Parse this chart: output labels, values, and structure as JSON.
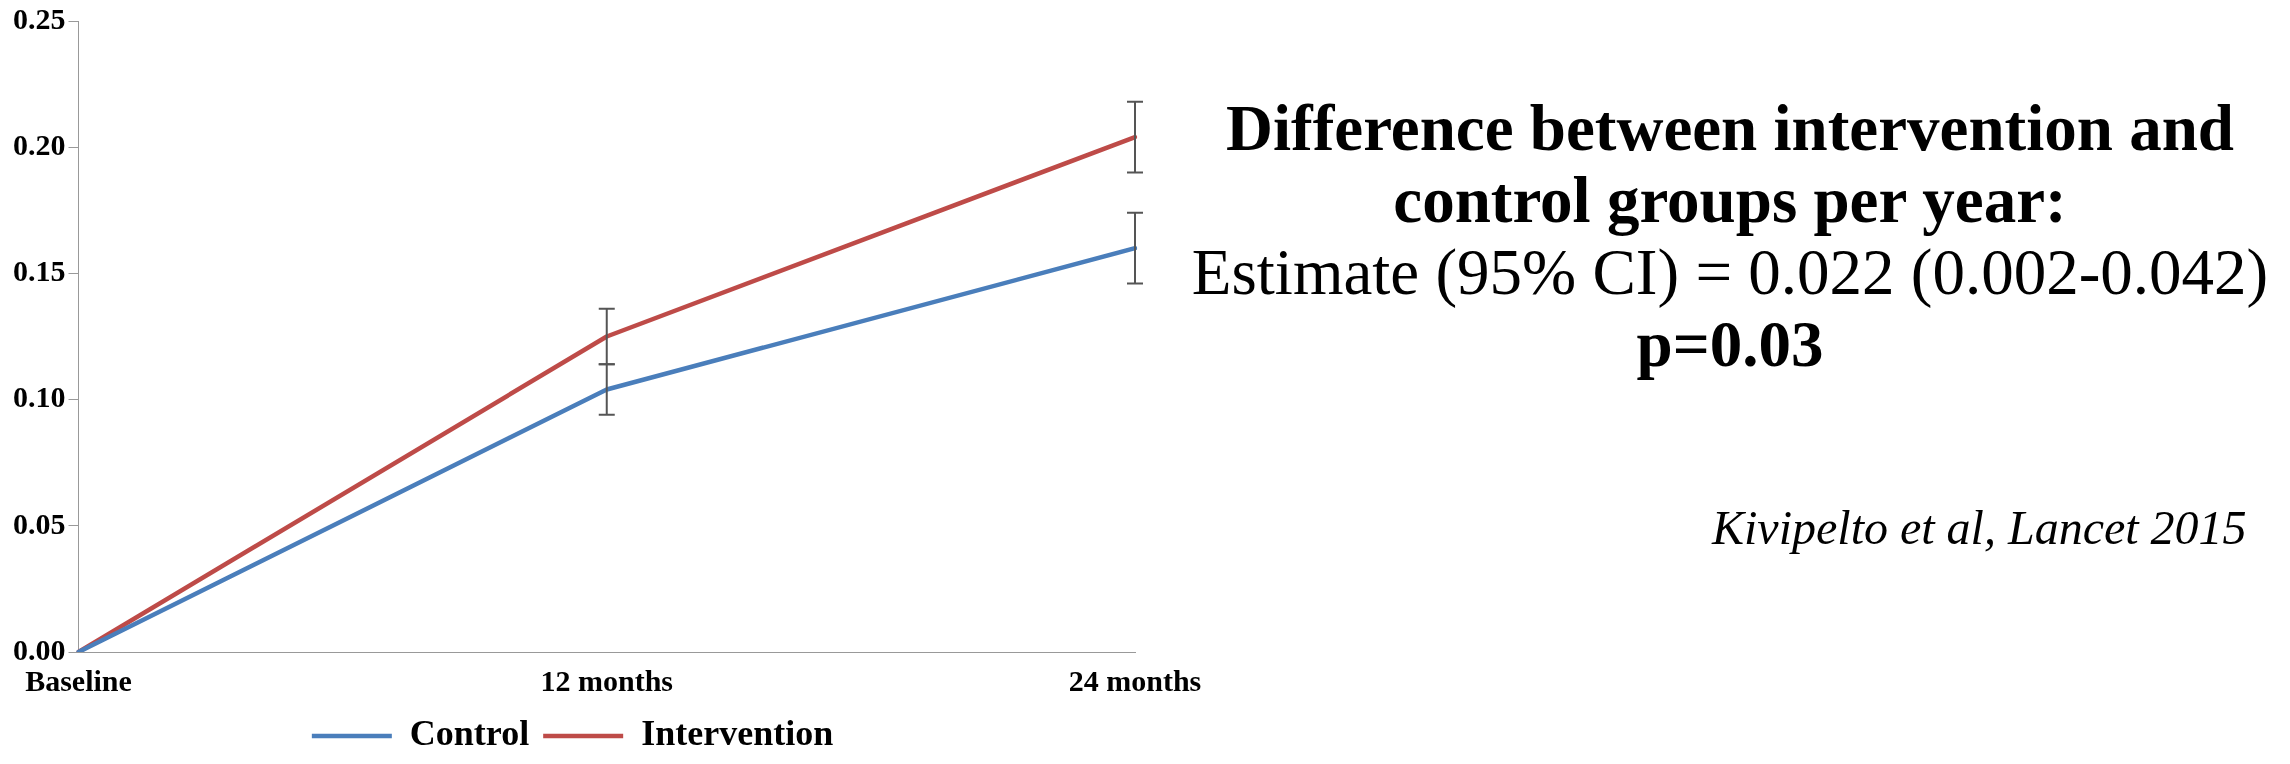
{
  "chart_data": {
    "type": "line",
    "categories": [
      "Baseline",
      "12 months",
      "24 months"
    ],
    "series": [
      {
        "name": "Control",
        "color": "#4a7ebb",
        "values": [
          0,
          0.104,
          0.16
        ],
        "errors": [
          null,
          0.01,
          0.014
        ]
      },
      {
        "name": "Intervention",
        "color": "#be4b48",
        "values": [
          0,
          0.125,
          0.204
        ],
        "errors": [
          null,
          0.011,
          0.014
        ]
      }
    ],
    "ylim": [
      0,
      0.25
    ],
    "yticks": [
      {
        "value": 0,
        "label": "0.00"
      },
      {
        "value": 0.05,
        "label": "0.05"
      },
      {
        "value": 0.1,
        "label": "0.10"
      },
      {
        "value": 0.15,
        "label": "0.15"
      },
      {
        "value": 0.2,
        "label": "0.20"
      },
      {
        "value": 0.25,
        "label": "0.25"
      }
    ],
    "grid": false,
    "legend": "bottom",
    "marker": "none",
    "line_style": "solid",
    "annotations": [
      "Difference between intervention and control groups per year:",
      "Estimate (95% CI) = 0.022 (0.002-0.042)",
      "p=0.03",
      "Kivipelto et al, Lancet 2015"
    ]
  }
}
